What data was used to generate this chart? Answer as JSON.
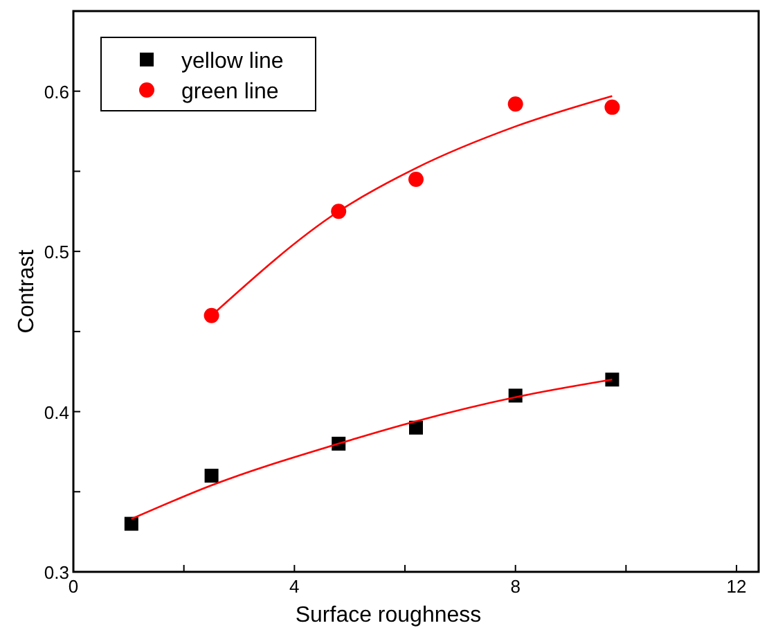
{
  "chart_data": {
    "type": "scatter",
    "xlabel": "Surface roughness",
    "ylabel": "Contrast",
    "xlim": [
      0,
      12.4
    ],
    "ylim": [
      0.3,
      0.65
    ],
    "xticks": [
      0,
      {
        "value": 2,
        "label": null
      },
      4,
      {
        "value": 6,
        "label": null
      },
      8,
      {
        "value": 10,
        "label": null
      },
      12
    ],
    "yticks": [
      0.3,
      {
        "value": 0.35,
        "label": null
      },
      0.4,
      {
        "value": 0.45,
        "label": null
      },
      0.5,
      {
        "value": 0.55,
        "label": null
      },
      0.6
    ],
    "grid": false,
    "legend": "top left",
    "series": [
      {
        "name": "yellow line",
        "marker": "square",
        "color": "#000000",
        "x": [
          1.05,
          2.5,
          4.8,
          6.2,
          8,
          9.75
        ],
        "values": [
          0.33,
          0.36,
          0.38,
          0.39,
          0.41,
          0.42
        ]
      },
      {
        "name": "green line",
        "marker": "circle",
        "color": "#ff0000",
        "x": [
          2.5,
          4.8,
          6.2,
          8,
          9.75
        ],
        "values": [
          0.46,
          0.525,
          0.545,
          0.592,
          0.59
        ]
      },
      {
        "type": "line",
        "color": "#ff0000",
        "marker": "none",
        "line_style": "solid",
        "x": [
          1.05,
          2.5,
          4.8,
          6.2,
          8,
          9.75
        ],
        "values": [
          0.333,
          0.354,
          0.38,
          0.394,
          0.409,
          0.42
        ]
      },
      {
        "type": "line",
        "color": "#ff0000",
        "marker": "none",
        "line_style": "solid",
        "x": [
          2.5,
          4.8,
          6.2,
          8,
          9.75
        ],
        "values": [
          0.46,
          0.525,
          0.552,
          0.578,
          0.597
        ]
      }
    ]
  }
}
